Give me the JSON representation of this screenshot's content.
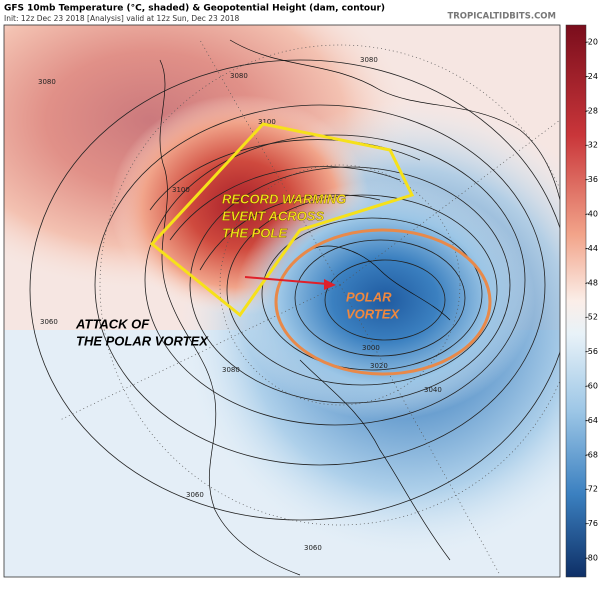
{
  "header": {
    "title": "GFS 10mb Temperature (°C, shaded) & Geopotential Height (dam, contour)",
    "subtitle": "Init: 12z Dec 23 2018   [Analysis]   valid at 12z Sun, Dec 23 2018",
    "watermark": "TROPICALTIDBITS.COM"
  },
  "colorbar": {
    "ticks": [
      -20,
      -24,
      -28,
      -32,
      -36,
      -40,
      -44,
      -48,
      -52,
      -56,
      -60,
      -64,
      -68,
      -72,
      -76,
      -80
    ]
  },
  "contour_labels": [
    "3080",
    "3080",
    "3080",
    "3100",
    "3100",
    "3060",
    "3080",
    "3040",
    "3020",
    "3000",
    "3060",
    "3060"
  ],
  "annotations": {
    "warming": [
      "RECORD WARMING",
      "EVENT ACROSS",
      "THE POLE"
    ],
    "vortex": [
      "POLAR",
      "VORTEX"
    ],
    "attack": [
      "ATTACK OF",
      "THE POLAR VORTEX"
    ]
  }
}
